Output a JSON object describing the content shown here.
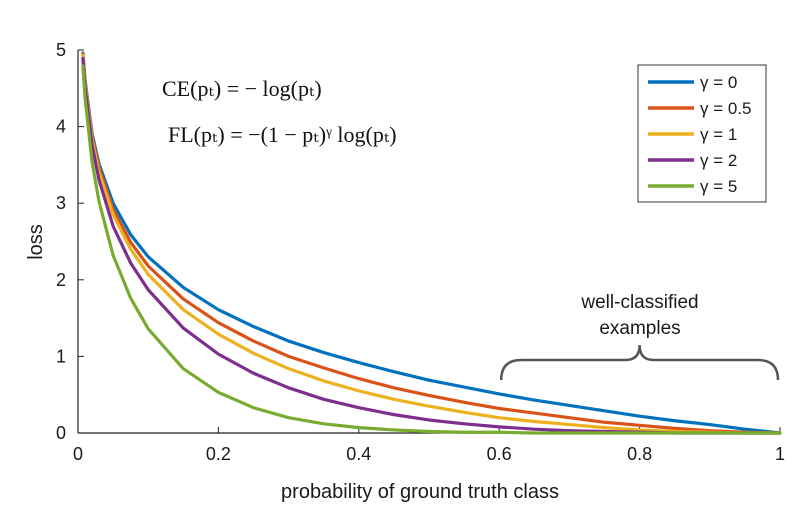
{
  "chart_data": {
    "type": "line",
    "title": "",
    "xlabel": "probability of ground truth class",
    "ylabel": "loss",
    "xlim": [
      0,
      1
    ],
    "ylim": [
      0,
      5
    ],
    "xticks": [
      0,
      0.2,
      0.4,
      0.6,
      0.8,
      1
    ],
    "xtick_labels": [
      "0",
      "0.2",
      "0.4",
      "0.6",
      "0.8",
      "1"
    ],
    "yticks": [
      0,
      1,
      2,
      3,
      4,
      5
    ],
    "ytick_labels": [
      "0",
      "1",
      "2",
      "3",
      "4",
      "5"
    ],
    "grid": false,
    "legend_position": "top-right",
    "formulas": [
      "CE(pₜ) = − log(pₜ)",
      "FL(pₜ) = −(1 − pₜ)ᵞ log(pₜ)"
    ],
    "annotation": {
      "text_line1": "well-classified",
      "text_line2": "examples",
      "x_range": [
        0.6,
        1.0
      ]
    },
    "series": [
      {
        "name": "γ = 0",
        "color": "#0072BD",
        "x": [
          0.007,
          0.01,
          0.02,
          0.03,
          0.05,
          0.075,
          0.1,
          0.15,
          0.2,
          0.25,
          0.3,
          0.35,
          0.4,
          0.45,
          0.5,
          0.55,
          0.6,
          0.65,
          0.7,
          0.75,
          0.8,
          0.85,
          0.9,
          0.95,
          1.0
        ],
        "y": [
          4.96,
          4.61,
          3.91,
          3.51,
          3.0,
          2.59,
          2.3,
          1.9,
          1.61,
          1.39,
          1.2,
          1.05,
          0.92,
          0.8,
          0.69,
          0.6,
          0.51,
          0.43,
          0.36,
          0.29,
          0.22,
          0.16,
          0.11,
          0.05,
          0.0
        ]
      },
      {
        "name": "γ = 0.5",
        "color": "#D95319",
        "x": [
          0.007,
          0.01,
          0.02,
          0.03,
          0.05,
          0.075,
          0.1,
          0.15,
          0.2,
          0.25,
          0.3,
          0.35,
          0.4,
          0.45,
          0.5,
          0.55,
          0.6,
          0.65,
          0.7,
          0.75,
          0.8,
          0.85,
          0.9,
          0.95,
          1.0
        ],
        "y": [
          4.95,
          4.58,
          3.87,
          3.46,
          2.92,
          2.49,
          2.18,
          1.75,
          1.44,
          1.2,
          1.0,
          0.85,
          0.71,
          0.59,
          0.49,
          0.4,
          0.32,
          0.26,
          0.2,
          0.14,
          0.1,
          0.06,
          0.03,
          0.01,
          0.0
        ]
      },
      {
        "name": "γ = 1",
        "color": "#EDB120",
        "x": [
          0.007,
          0.01,
          0.02,
          0.03,
          0.05,
          0.075,
          0.1,
          0.15,
          0.2,
          0.25,
          0.3,
          0.35,
          0.4,
          0.45,
          0.5,
          0.55,
          0.6,
          0.65,
          0.7,
          0.75,
          0.8,
          0.85,
          0.9,
          0.95,
          1.0
        ],
        "y": [
          4.93,
          4.56,
          3.83,
          3.4,
          2.85,
          2.4,
          2.07,
          1.61,
          1.29,
          1.04,
          0.84,
          0.68,
          0.55,
          0.44,
          0.35,
          0.27,
          0.2,
          0.15,
          0.11,
          0.07,
          0.04,
          0.02,
          0.01,
          0.0,
          0.0
        ]
      },
      {
        "name": "γ = 2",
        "color": "#7E2F8E",
        "x": [
          0.007,
          0.01,
          0.02,
          0.03,
          0.05,
          0.075,
          0.1,
          0.15,
          0.2,
          0.25,
          0.3,
          0.35,
          0.4,
          0.45,
          0.5,
          0.55,
          0.6,
          0.65,
          0.7,
          0.75,
          0.8,
          0.85,
          0.9,
          0.95,
          1.0
        ],
        "y": [
          4.89,
          4.52,
          3.76,
          3.3,
          2.7,
          2.22,
          1.87,
          1.37,
          1.03,
          0.78,
          0.59,
          0.44,
          0.33,
          0.24,
          0.17,
          0.12,
          0.08,
          0.05,
          0.03,
          0.02,
          0.01,
          0.0,
          0.0,
          0.0,
          0.0
        ]
      },
      {
        "name": "γ = 5",
        "color": "#77AC30",
        "x": [
          0.007,
          0.01,
          0.02,
          0.03,
          0.05,
          0.075,
          0.1,
          0.15,
          0.2,
          0.25,
          0.3,
          0.35,
          0.4,
          0.45,
          0.5,
          0.55,
          0.6,
          0.65,
          0.7,
          0.75,
          0.8,
          0.85,
          0.9,
          0.95,
          1.0
        ],
        "y": [
          4.79,
          4.38,
          3.54,
          3.02,
          2.32,
          1.76,
          1.36,
          0.84,
          0.53,
          0.33,
          0.2,
          0.12,
          0.07,
          0.04,
          0.02,
          0.01,
          0.01,
          0.0,
          0.0,
          0.0,
          0.0,
          0.0,
          0.0,
          0.0,
          0.0
        ]
      }
    ]
  }
}
